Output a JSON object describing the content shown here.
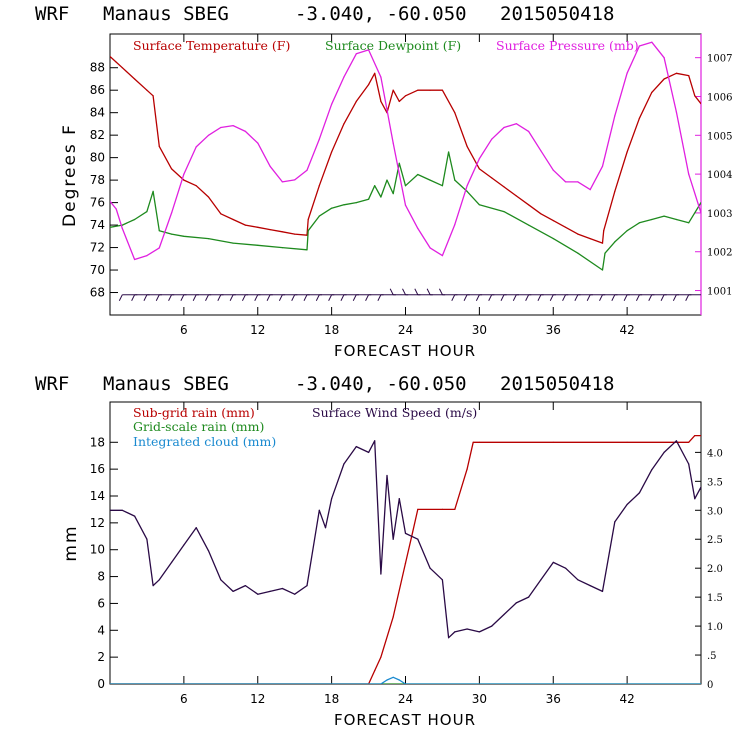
{
  "colors": {
    "temperature": "#b80000",
    "dewpoint": "#1e8a1e",
    "pressure": "#e020e0",
    "wind": "#2a0a46",
    "subgrid_rain": "#b80000",
    "gridscale_rain": "#1e8a1e",
    "cloud": "#1a8ad0"
  },
  "chart_data": [
    {
      "type": "line",
      "header": {
        "model": "WRF",
        "station": "Manaus SBEG",
        "coords": "-3.040, -60.050",
        "init_time": "2015050418"
      },
      "xlabel": "FORECAST HOUR",
      "ylabel": "Degrees F",
      "xlim": [
        0,
        48
      ],
      "ylim": [
        66,
        91
      ],
      "x_ticks": [
        6,
        12,
        18,
        24,
        30,
        36,
        42
      ],
      "x_tick_labels": [
        "6",
        "12",
        "18",
        "24",
        "30",
        "36",
        "42"
      ],
      "y_ticks": [
        68,
        70,
        72,
        74,
        76,
        78,
        80,
        82,
        84,
        86,
        88
      ],
      "y_tick_labels": [
        "68",
        "70",
        "72",
        "74",
        "76",
        "78",
        "80",
        "82",
        "84",
        "86",
        "88"
      ],
      "y2lim": [
        1000.37,
        1007.61
      ],
      "y2_ticks": [
        1001,
        1002,
        1003,
        1004,
        1005,
        1006,
        1007
      ],
      "y2_tick_labels": [
        "1001",
        "1002",
        "1003",
        "1004",
        "1005",
        "1006",
        "1007"
      ],
      "legend": [
        "Surface Temperature (F)",
        "Surface Dewpoint (F)",
        "Surface Pressure (mb)"
      ],
      "series": [
        {
          "name": "Surface Temperature (F)",
          "axis": "left",
          "x": [
            0,
            0.5,
            1,
            2,
            3,
            3.5,
            4,
            5,
            6,
            7,
            8,
            9,
            10,
            11,
            12,
            13,
            14,
            15,
            16,
            16.1,
            17,
            18,
            19,
            20,
            21,
            21.5,
            22,
            22.5,
            23,
            23.5,
            24,
            25,
            26,
            27,
            28,
            29,
            30,
            31,
            32,
            33,
            34,
            35,
            36,
            37,
            38,
            39,
            40,
            40.1,
            41,
            42,
            43,
            44,
            45,
            46,
            47,
            47.5,
            48
          ],
          "values": [
            89,
            88.5,
            88,
            87,
            86,
            85.5,
            81,
            79,
            78,
            77.5,
            76.5,
            75,
            74.5,
            74,
            73.8,
            73.6,
            73.4,
            73.2,
            73.1,
            74.5,
            77.5,
            80.5,
            83,
            85,
            86.5,
            87.5,
            85,
            84,
            86,
            85,
            85.5,
            86,
            86,
            86,
            84,
            81,
            79,
            78.2,
            77.4,
            76.6,
            75.8,
            75,
            74.4,
            73.8,
            73.2,
            72.8,
            72.4,
            73.5,
            77,
            80.5,
            83.5,
            85.8,
            87,
            87.5,
            87.3,
            85.5,
            84.8
          ]
        },
        {
          "name": "Surface Dewpoint (F)",
          "axis": "left",
          "x": [
            0,
            1,
            2,
            3,
            3.5,
            4,
            5,
            6,
            8,
            10,
            12,
            14,
            16,
            16.1,
            17,
            18,
            19,
            20,
            21,
            21.5,
            22,
            22.5,
            23,
            23.5,
            24,
            25,
            26,
            27,
            27.5,
            28,
            29,
            30,
            32,
            34,
            36,
            38,
            40,
            40.2,
            41,
            42,
            43,
            44,
            45,
            46,
            47,
            48
          ],
          "values": [
            73.8,
            74,
            74.5,
            75.2,
            77,
            73.5,
            73.2,
            73,
            72.8,
            72.4,
            72.2,
            72,
            71.8,
            73.5,
            74.8,
            75.5,
            75.8,
            76,
            76.3,
            77.5,
            76.5,
            78,
            76.8,
            79.5,
            77.5,
            78.5,
            78,
            77.5,
            80.5,
            78,
            77,
            75.8,
            75.2,
            74,
            72.8,
            71.5,
            70,
            71.5,
            72.5,
            73.5,
            74.2,
            74.5,
            74.8,
            74.5,
            74.2,
            76
          ]
        },
        {
          "name": "Surface Pressure (mb)",
          "axis": "right",
          "x": [
            0,
            0.5,
            1,
            2,
            3,
            4,
            5,
            6,
            7,
            8,
            9,
            10,
            11,
            12,
            13,
            14,
            15,
            16,
            17,
            18,
            19,
            20,
            21,
            22,
            23,
            24,
            25,
            26,
            27,
            28,
            29,
            30,
            31,
            32,
            33,
            34,
            35,
            36,
            37,
            38,
            39,
            40,
            41,
            42,
            43,
            44,
            45,
            46,
            47,
            48
          ],
          "values": [
            1003.3,
            1003.1,
            1002.6,
            1001.8,
            1001.9,
            1002.1,
            1003,
            1004,
            1004.7,
            1005,
            1005.2,
            1005.25,
            1005.1,
            1004.8,
            1004.2,
            1003.8,
            1003.85,
            1004.1,
            1004.9,
            1005.8,
            1006.5,
            1007.1,
            1007.2,
            1006.5,
            1004.8,
            1003.2,
            1002.6,
            1002.1,
            1001.9,
            1002.7,
            1003.7,
            1004.4,
            1004.9,
            1005.2,
            1005.3,
            1005.1,
            1004.6,
            1004.1,
            1003.8,
            1003.8,
            1003.6,
            1004.2,
            1005.5,
            1006.6,
            1007.3,
            1007.4,
            1007,
            1005.6,
            1004,
            1003
          ]
        }
      ],
      "wind_barb_row_y": 67.8
    },
    {
      "type": "line",
      "header": {
        "model": "WRF",
        "station": "Manaus SBEG",
        "coords": "-3.040, -60.050",
        "init_time": "2015050418"
      },
      "xlabel": "FORECAST HOUR",
      "ylabel": "mm",
      "xlim": [
        0,
        48
      ],
      "ylim": [
        0,
        21
      ],
      "x_ticks": [
        6,
        12,
        18,
        24,
        30,
        36,
        42
      ],
      "x_tick_labels": [
        "6",
        "12",
        "18",
        "24",
        "30",
        "36",
        "42"
      ],
      "y_ticks": [
        0,
        2,
        4,
        6,
        8,
        10,
        12,
        14,
        16,
        18
      ],
      "y_tick_labels": [
        "0",
        "2",
        "4",
        "6",
        "8",
        "10",
        "12",
        "14",
        "16",
        "18"
      ],
      "y2lim": [
        0,
        4.87
      ],
      "y2_ticks": [
        0,
        0.5,
        1,
        1.5,
        2,
        2.5,
        3,
        3.5,
        4
      ],
      "y2_tick_labels": [
        "0",
        ".5",
        "1.0",
        "1.5",
        "2.0",
        "2.5",
        "3.0",
        "3.5",
        "4.0"
      ],
      "legend": [
        "Sub-grid rain (mm)",
        "Surface Wind Speed (m/s)",
        "Grid-scale rain (mm)",
        "Integrated cloud (mm)"
      ],
      "series": [
        {
          "name": "Sub-grid rain (mm)",
          "axis": "left",
          "x": [
            0,
            21,
            21.5,
            22,
            23,
            24,
            24.5,
            25,
            27,
            28,
            29,
            29.5,
            30,
            36,
            42,
            47,
            47.5,
            48
          ],
          "values": [
            0,
            0,
            1,
            2,
            5,
            9,
            11,
            13,
            13,
            13,
            16,
            18,
            18,
            18,
            18,
            18,
            18.5,
            18.5
          ]
        },
        {
          "name": "Grid-scale rain (mm)",
          "axis": "left",
          "x": [
            0,
            48
          ],
          "values": [
            0,
            0
          ]
        },
        {
          "name": "Integrated cloud (mm)",
          "axis": "left",
          "x": [
            0,
            22,
            22.5,
            23,
            23.5,
            24,
            48
          ],
          "values": [
            0,
            0,
            0.3,
            0.5,
            0.3,
            0,
            0
          ]
        },
        {
          "name": "Surface Wind Speed (m/s)",
          "axis": "right",
          "x": [
            0,
            1,
            2,
            3,
            3.5,
            4,
            5,
            6,
            7,
            8,
            9,
            10,
            11,
            12,
            13,
            14,
            15,
            16,
            17,
            17.5,
            18,
            19,
            20,
            21,
            21.5,
            22,
            22.5,
            23,
            23.5,
            24,
            25,
            26,
            27,
            27.5,
            28,
            29,
            30,
            31,
            32,
            33,
            34,
            35,
            36,
            37,
            38,
            39,
            40,
            41,
            42,
            43,
            44,
            45,
            46,
            47,
            47.5,
            48
          ],
          "values": [
            3.0,
            3.0,
            2.9,
            2.5,
            1.7,
            1.8,
            2.1,
            2.4,
            2.7,
            2.3,
            1.8,
            1.6,
            1.7,
            1.55,
            1.6,
            1.65,
            1.55,
            1.7,
            3.0,
            2.7,
            3.2,
            3.8,
            4.1,
            4.0,
            4.2,
            1.9,
            3.6,
            2.5,
            3.2,
            2.6,
            2.5,
            2.0,
            1.8,
            0.8,
            0.9,
            0.95,
            0.9,
            1.0,
            1.2,
            1.4,
            1.5,
            1.8,
            2.1,
            2.0,
            1.8,
            1.7,
            1.6,
            2.8,
            3.1,
            3.3,
            3.7,
            4.0,
            4.2,
            3.8,
            3.2,
            3.4
          ]
        }
      ]
    }
  ]
}
